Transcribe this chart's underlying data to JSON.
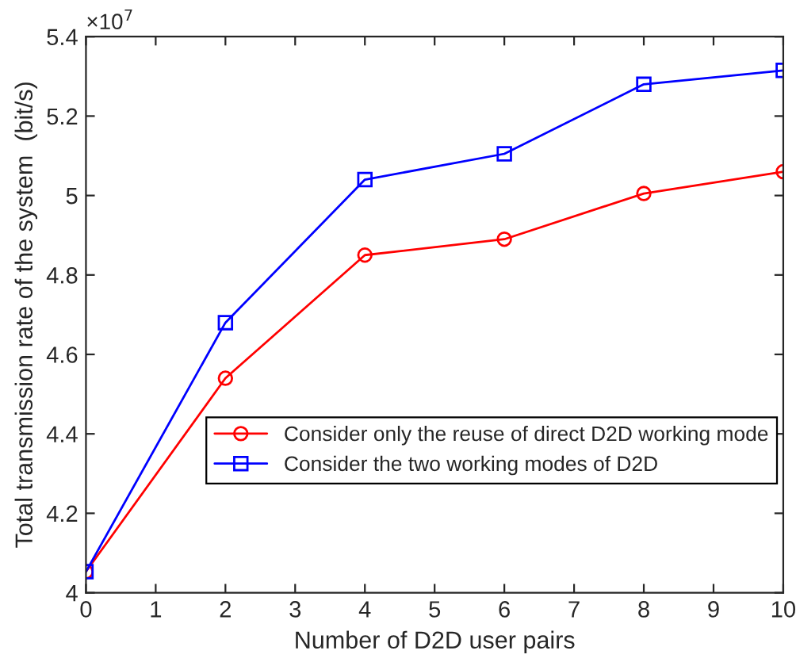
{
  "chart_data": {
    "type": "line",
    "xlabel": "Number of D2D user pairs",
    "ylabel": "Total transmission rate of the system  (bit/s)",
    "annotations": [
      "×10$^{7}$"
    ],
    "x": [
      0,
      2,
      4,
      6,
      8,
      10
    ],
    "series": [
      {
        "name": "Consider only the reuse of direct D2D working mode",
        "color": "#ff0000",
        "marker": "circle",
        "values": [
          4.053,
          4.54,
          4.85,
          4.89,
          5.005,
          5.06
        ]
      },
      {
        "name": "Consider the two working modes of D2D",
        "color": "#0000ff",
        "marker": "square",
        "values": [
          4.053,
          4.68,
          5.04,
          5.105,
          5.28,
          5.315
        ]
      }
    ],
    "xlim": [
      0,
      10
    ],
    "xticks": [
      0,
      1,
      2,
      3,
      4,
      5,
      6,
      7,
      8,
      9,
      10
    ],
    "ylim": [
      4,
      5.4
    ],
    "yticks": [
      4,
      4.2,
      4.4,
      4.6,
      4.8,
      5,
      5.2,
      5.4
    ],
    "grid": false,
    "legend": "lower right",
    "line_style": "solid"
  }
}
